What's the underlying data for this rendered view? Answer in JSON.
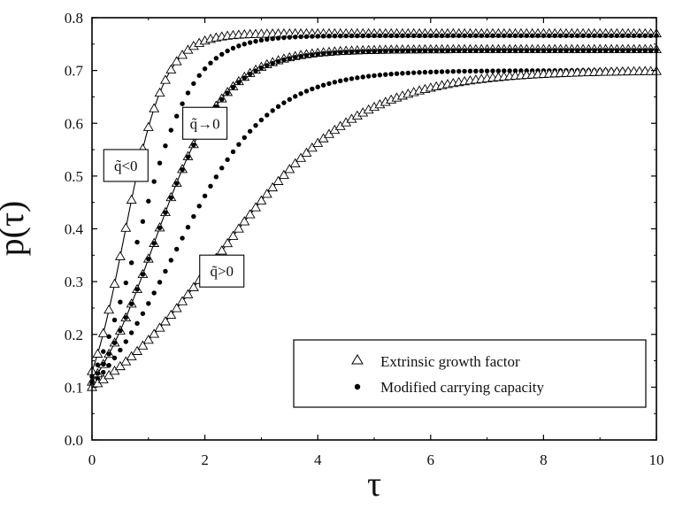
{
  "chart_data": {
    "type": "scatter",
    "title": "",
    "xlabel": "τ",
    "ylabel": "p(τ)",
    "xlim": [
      0,
      10
    ],
    "ylim": [
      0.0,
      0.8
    ],
    "grid": false,
    "x_ticks": [
      "0",
      "2",
      "4",
      "6",
      "8",
      "10"
    ],
    "y_ticks": [
      "0.0",
      "0.1",
      "0.2",
      "0.3",
      "0.4",
      "0.5",
      "0.6",
      "0.7",
      "0.8"
    ],
    "legend": {
      "placement": "bottom-right",
      "entries": [
        {
          "label": "Extrinsic growth factor",
          "marker": "open-triangle"
        },
        {
          "label": "Modified carrying capacity",
          "marker": "filled-dot"
        }
      ]
    },
    "annotations": [
      {
        "label": "q̃<0",
        "near": {
          "x": 0.6,
          "y": 0.52
        }
      },
      {
        "label": "q̃→0",
        "near": {
          "x": 2.0,
          "y": 0.6
        }
      },
      {
        "label": "q̃>0",
        "near": {
          "x": 2.3,
          "y": 0.32
        }
      }
    ],
    "curves": [
      {
        "group": "q̃<0",
        "name": "Extrinsic growth factor",
        "marker": "open-triangle",
        "model": "logistic",
        "p0": 0.13,
        "K": 0.77,
        "r": 2.8,
        "fit_line": true
      },
      {
        "group": "q̃<0",
        "name": "Modified carrying capacity",
        "marker": "filled-dot",
        "model": "logistic",
        "p0": 0.12,
        "K": 0.766,
        "r": 2.05,
        "fit_line": false
      },
      {
        "group": "q̃→0",
        "name": "Extrinsic growth factor",
        "marker": "open-triangle",
        "model": "logistic",
        "p0": 0.11,
        "K": 0.74,
        "r": 1.6,
        "fit_line": true
      },
      {
        "group": "q̃→0",
        "name": "Modified carrying capacity",
        "marker": "filled-dot",
        "model": "logistic",
        "p0": 0.11,
        "K": 0.738,
        "r": 1.6,
        "fit_line": false
      },
      {
        "group": "q̃>0",
        "name": "Modified carrying capacity",
        "marker": "filled-dot",
        "model": "logistic",
        "p0": 0.105,
        "K": 0.7,
        "r": 1.2,
        "fit_line": false
      },
      {
        "group": "q̃>0",
        "name": "Extrinsic growth factor",
        "marker": "open-triangle",
        "model": "logistic",
        "p0": 0.1,
        "K": 0.7,
        "r": 0.8,
        "fit_line": true
      }
    ]
  }
}
